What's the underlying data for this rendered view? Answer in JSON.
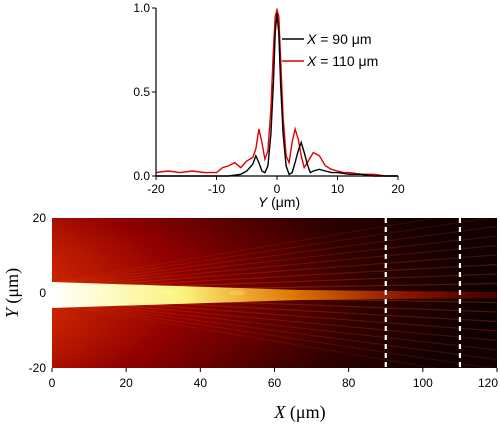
{
  "chart_data": [
    {
      "type": "line",
      "title": "",
      "xlabel": "Y (μm)",
      "ylabel": "",
      "xlim": [
        -20,
        20
      ],
      "ylim": [
        0,
        1.0
      ],
      "xticks": [
        -20,
        -10,
        0,
        10,
        20
      ],
      "yticks": [
        0.0,
        0.5,
        1.0
      ],
      "ytick_labels": [
        "0.0",
        "0.5",
        "1.0"
      ],
      "legend_placement": "top-right",
      "series": [
        {
          "name": "X = 90 μm",
          "color": "#000000",
          "x": [
            -20,
            -12,
            -8,
            -6,
            -5,
            -4,
            -3.5,
            -3,
            -2.5,
            -2,
            -1.5,
            -1,
            -0.6,
            -0.3,
            0,
            0.3,
            0.6,
            1,
            1.5,
            2,
            2.5,
            3,
            3.5,
            4,
            4.5,
            5,
            5.5,
            6,
            7,
            8,
            9,
            10,
            12,
            14,
            16,
            18,
            20
          ],
          "y": [
            0,
            0,
            0,
            0.01,
            0.03,
            0.07,
            0.12,
            0.08,
            0.03,
            0.02,
            0.06,
            0.25,
            0.55,
            0.85,
            0.97,
            0.85,
            0.55,
            0.25,
            0.06,
            0.01,
            0.02,
            0.08,
            0.15,
            0.2,
            0.14,
            0.07,
            0.02,
            0.03,
            0.04,
            0.03,
            0.02,
            0.02,
            0.01,
            0.01,
            0,
            0,
            0
          ]
        },
        {
          "name": "X = 110 μm",
          "color": "#e00000",
          "x": [
            -20,
            -18,
            -16,
            -14,
            -12,
            -10,
            -9,
            -8,
            -7,
            -6,
            -5,
            -4,
            -3.5,
            -3,
            -2.5,
            -2,
            -1.5,
            -1,
            -0.6,
            -0.3,
            0,
            0.3,
            0.6,
            1,
            1.5,
            2,
            2.5,
            3,
            3.5,
            4,
            4.5,
            5,
            6,
            7,
            8,
            9,
            10,
            11,
            12,
            14,
            16,
            18,
            20
          ],
          "y": [
            0.02,
            0.03,
            0.02,
            0.03,
            0.02,
            0.02,
            0.05,
            0.06,
            0.08,
            0.05,
            0.09,
            0.11,
            0.16,
            0.28,
            0.2,
            0.1,
            0.15,
            0.4,
            0.75,
            0.95,
            0.99,
            0.95,
            0.7,
            0.35,
            0.12,
            0.08,
            0.2,
            0.28,
            0.22,
            0.12,
            0.05,
            0.08,
            0.14,
            0.12,
            0.06,
            0.04,
            0.03,
            0.02,
            0.02,
            0.01,
            0.01,
            0,
            0
          ]
        }
      ]
    },
    {
      "type": "heatmap",
      "title": "",
      "xlabel": "X (μm)",
      "ylabel": "Y (μm)",
      "xlim": [
        0,
        120
      ],
      "ylim": [
        -20,
        20
      ],
      "xticks": [
        0,
        20,
        40,
        60,
        80,
        100,
        120
      ],
      "yticks": [
        20,
        0,
        -20
      ],
      "colormap": [
        "#000000",
        "#5a0000",
        "#c00000",
        "#ff4000",
        "#ffa500",
        "#ffff60",
        "#ffffe0"
      ],
      "markers": [
        {
          "x": 90,
          "style": "dashed",
          "color": "#ffffff"
        },
        {
          "x": 110,
          "style": "dashed",
          "color": "#ffffff"
        }
      ]
    }
  ]
}
